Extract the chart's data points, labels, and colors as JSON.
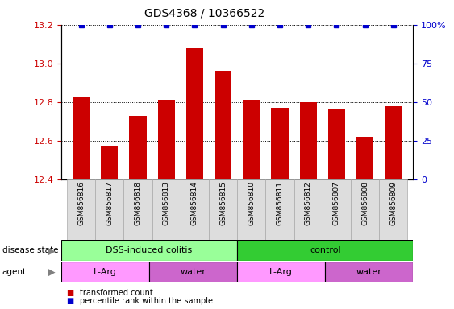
{
  "title": "GDS4368 / 10366522",
  "samples": [
    "GSM856816",
    "GSM856817",
    "GSM856818",
    "GSM856813",
    "GSM856814",
    "GSM856815",
    "GSM856810",
    "GSM856811",
    "GSM856812",
    "GSM856807",
    "GSM856808",
    "GSM856809"
  ],
  "bar_values": [
    12.83,
    12.57,
    12.73,
    12.81,
    13.08,
    12.96,
    12.81,
    12.77,
    12.8,
    12.76,
    12.62,
    12.78
  ],
  "percentile_values": [
    100,
    100,
    100,
    100,
    100,
    100,
    100,
    100,
    100,
    100,
    100,
    100
  ],
  "ylim_left": [
    12.4,
    13.2
  ],
  "ylim_right": [
    0,
    100
  ],
  "yticks_left": [
    12.4,
    12.6,
    12.8,
    13.0,
    13.2
  ],
  "yticks_right": [
    0,
    25,
    50,
    75,
    100
  ],
  "bar_color": "#CC0000",
  "percentile_color": "#0000CC",
  "background_color": "#ffffff",
  "disease_state_groups": [
    {
      "label": "DSS-induced colitis",
      "start": 0,
      "end": 6,
      "color": "#99FF99"
    },
    {
      "label": "control",
      "start": 6,
      "end": 12,
      "color": "#33CC33"
    }
  ],
  "agent_groups": [
    {
      "label": "L-Arg",
      "start": 0,
      "end": 3,
      "color": "#FF99FF"
    },
    {
      "label": "water",
      "start": 3,
      "end": 6,
      "color": "#CC66CC"
    },
    {
      "label": "L-Arg",
      "start": 6,
      "end": 9,
      "color": "#FF99FF"
    },
    {
      "label": "water",
      "start": 9,
      "end": 12,
      "color": "#CC66CC"
    }
  ],
  "legend_items": [
    {
      "label": "transformed count",
      "color": "#CC0000"
    },
    {
      "label": "percentile rank within the sample",
      "color": "#0000CC"
    }
  ],
  "label_bg_color": "#DDDDDD",
  "label_edge_color": "#AAAAAA"
}
